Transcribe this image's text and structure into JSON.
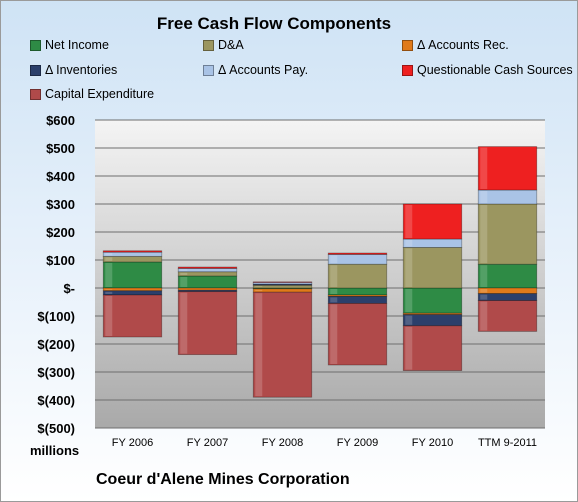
{
  "chart_data": {
    "type": "bar",
    "stacked": true,
    "title": "Free Cash Flow Components",
    "categories": [
      "FY 2006",
      "FY 2007",
      "FY 2008",
      "FY 2009",
      "FY 2010",
      "TTM 9-2011"
    ],
    "ylim": [
      -500,
      600
    ],
    "yticks": [
      {
        "value": 600,
        "label": "$600"
      },
      {
        "value": 500,
        "label": "$500"
      },
      {
        "value": 400,
        "label": "$400"
      },
      {
        "value": 300,
        "label": "$300"
      },
      {
        "value": 200,
        "label": "$200"
      },
      {
        "value": 100,
        "label": "$100"
      },
      {
        "value": 0,
        "label": "$-"
      },
      {
        "value": -100,
        "label": "$(100)"
      },
      {
        "value": -200,
        "label": "$(200)"
      },
      {
        "value": -300,
        "label": "$(300)"
      },
      {
        "value": -400,
        "label": "$(400)"
      },
      {
        "value": -500,
        "label": "$(500)"
      }
    ],
    "grid": true,
    "legend_position": "top",
    "units_label": "millions",
    "company": "Coeur d'Alene Mines Corporation",
    "series": [
      {
        "name": "Net Income",
        "color": "#2e8b45",
        "values": [
          93,
          43,
          -3,
          -25,
          -90,
          85
        ]
      },
      {
        "name": "D&A",
        "color": "#9b9660",
        "values": [
          20,
          15,
          10,
          85,
          145,
          215
        ]
      },
      {
        "name": "Δ Accounts Rec.",
        "color": "#e07a1a",
        "values": [
          -10,
          -8,
          -12,
          -5,
          -5,
          -20
        ]
      },
      {
        "name": "Δ Inventories",
        "color": "#2b3f6b",
        "values": [
          -15,
          -5,
          4,
          -25,
          -40,
          -25
        ]
      },
      {
        "name": "Δ Accounts Pay.",
        "color": "#a9c3e6",
        "values": [
          15,
          12,
          6,
          35,
          30,
          50
        ]
      },
      {
        "name": "Questionable Cash Sources",
        "color": "#ee2020",
        "values": [
          5,
          5,
          2,
          5,
          125,
          155
        ]
      },
      {
        "name": "Capital Expenditure",
        "color": "#b04a4a",
        "values": [
          -150,
          -225,
          -375,
          -220,
          -160,
          -110
        ]
      }
    ]
  }
}
